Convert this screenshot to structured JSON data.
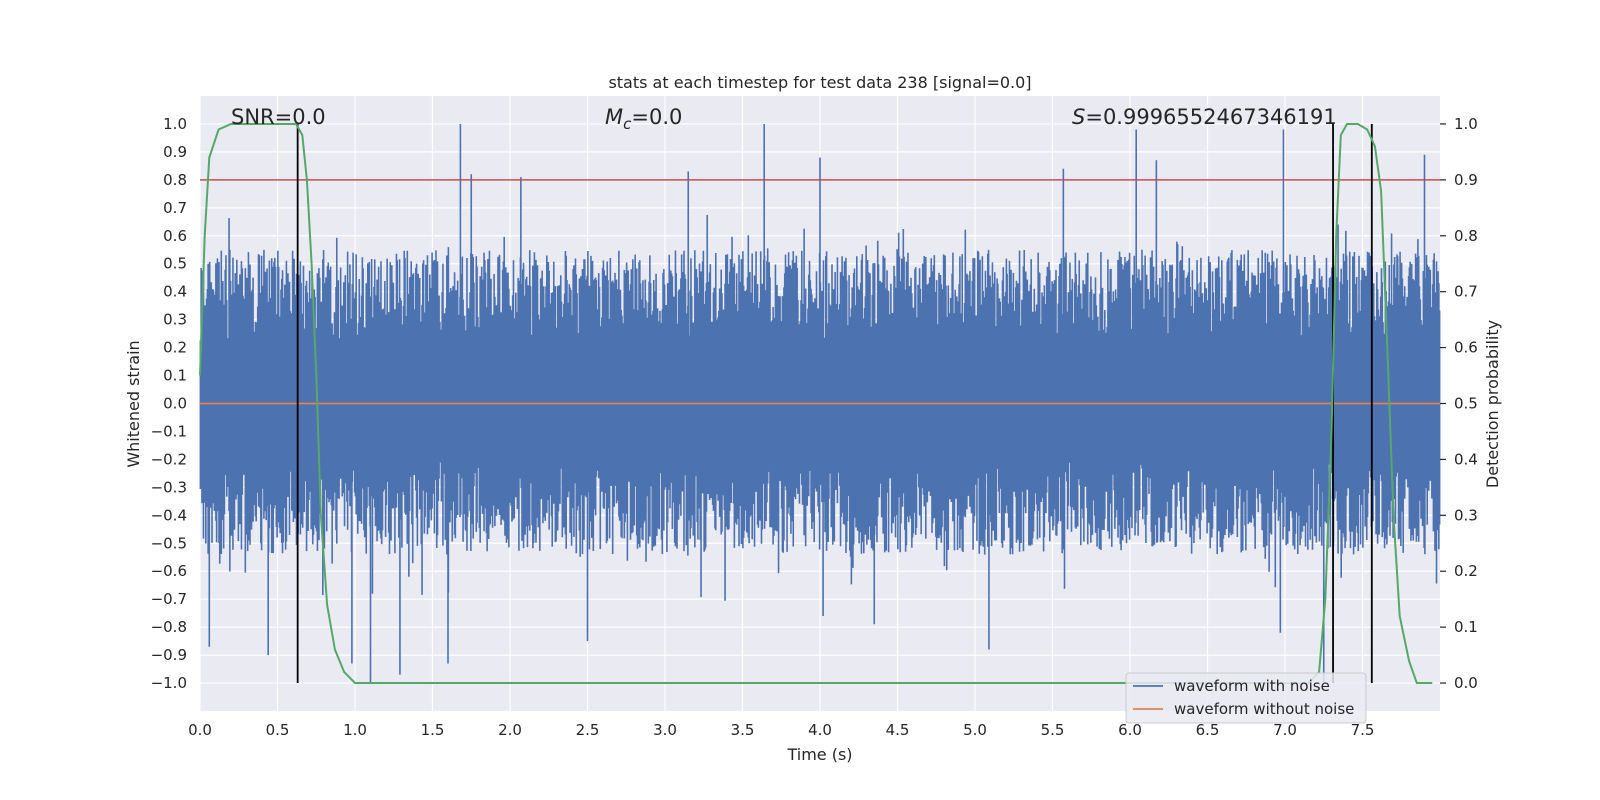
{
  "chart_data": {
    "type": "line",
    "title": "stats at each timestep for test data 238 [signal=0.0]",
    "xlabel": "Time (s)",
    "ylabel": "Whitened strain",
    "y2label": "Detection probability",
    "xlim": [
      0.0,
      8.0
    ],
    "ylim": [
      -1.1,
      1.1
    ],
    "y2lim": [
      -0.05,
      1.05
    ],
    "xticks": [
      0.0,
      0.5,
      1.0,
      1.5,
      2.0,
      2.5,
      3.0,
      3.5,
      4.0,
      4.5,
      5.0,
      5.5,
      6.0,
      6.5,
      7.0,
      7.5
    ],
    "xtick_labels": [
      "0.0",
      "0.5",
      "1.0",
      "1.5",
      "2.0",
      "2.5",
      "3.0",
      "3.5",
      "4.0",
      "4.5",
      "5.0",
      "5.5",
      "6.0",
      "6.5",
      "7.0",
      "7.5"
    ],
    "yticks": [
      1.0,
      0.9,
      0.8,
      0.7,
      0.6,
      0.5,
      0.4,
      0.3,
      0.2,
      0.1,
      0.0,
      -0.1,
      -0.2,
      -0.3,
      -0.4,
      -0.5,
      -0.6,
      -0.7,
      -0.8,
      -0.9,
      -1.0
    ],
    "ytick_labels": [
      "1.0",
      "0.9",
      "0.8",
      "0.7",
      "0.6",
      "0.5",
      "0.4",
      "0.3",
      "0.2",
      "0.1",
      "0.0",
      "−0.1",
      "−0.2",
      "−0.3",
      "−0.4",
      "−0.5",
      "−0.6",
      "−0.7",
      "−0.8",
      "−0.9",
      "−1.0"
    ],
    "y2ticks": [
      1.0,
      0.9,
      0.8,
      0.7,
      0.6,
      0.5,
      0.4,
      0.3,
      0.2,
      0.1,
      0.0
    ],
    "y2tick_labels": [
      "1.0",
      "0.9",
      "0.8",
      "0.7",
      "0.6",
      "0.5",
      "0.4",
      "0.3",
      "0.2",
      "0.1",
      "0.0"
    ],
    "annotations": {
      "snr": "SNR=0.0",
      "mc_symbol": "M",
      "mc_sub": "c",
      "mc_value": "=0.0",
      "s_symbol": "S",
      "s_value": "=0.9996552467346191"
    },
    "series": [
      {
        "name": "waveform with noise",
        "axis": "left",
        "color": "#4c72b0",
        "kind": "noise",
        "samples": 1600,
        "typical_envelope": [
          -0.45,
          0.5
        ],
        "spikes_top": [
          [
            1.68,
            1.0
          ],
          [
            3.64,
            1.0
          ],
          [
            6.04,
            0.98
          ],
          [
            6.99,
            0.98
          ],
          [
            7.9,
            0.89
          ],
          [
            4.0,
            0.88
          ],
          [
            3.15,
            0.83
          ],
          [
            1.75,
            0.82
          ],
          [
            2.07,
            0.81
          ],
          [
            5.57,
            0.84
          ],
          [
            6.17,
            0.87
          ]
        ],
        "spikes_bottom": [
          [
            0.06,
            -0.87
          ],
          [
            0.44,
            -0.9
          ],
          [
            0.98,
            -0.93
          ],
          [
            1.1,
            -1.0
          ],
          [
            1.29,
            -0.97
          ],
          [
            1.6,
            -0.93
          ],
          [
            2.5,
            -0.85
          ],
          [
            4.02,
            -0.76
          ],
          [
            4.35,
            -0.79
          ],
          [
            5.09,
            -0.88
          ],
          [
            7.25,
            -1.0
          ],
          [
            6.97,
            -0.82
          ]
        ]
      },
      {
        "name": "waveform without noise",
        "axis": "left",
        "color": "#dd8452",
        "x": [
          0.0,
          8.0
        ],
        "y": [
          0.0,
          0.0
        ]
      },
      {
        "name": "detection probability",
        "axis": "right",
        "color": "#55a868",
        "x": [
          0.0,
          0.03,
          0.06,
          0.12,
          0.2,
          0.3,
          0.4,
          0.5,
          0.57,
          0.62,
          0.66,
          0.69,
          0.72,
          0.75,
          0.78,
          0.82,
          0.87,
          0.93,
          1.0,
          1.1,
          1.5,
          2.0,
          3.0,
          4.0,
          5.0,
          6.0,
          7.0,
          7.15,
          7.22,
          7.26,
          7.3,
          7.33,
          7.36,
          7.4,
          7.47,
          7.53,
          7.58,
          7.62,
          7.66,
          7.7,
          7.74,
          7.8,
          7.85,
          7.9,
          7.95
        ],
        "y": [
          0.55,
          0.8,
          0.94,
          0.99,
          1.0,
          1.0,
          1.0,
          1.0,
          1.0,
          1.0,
          0.98,
          0.9,
          0.75,
          0.55,
          0.3,
          0.14,
          0.06,
          0.02,
          0.0,
          0.0,
          0.0,
          0.0,
          0.0,
          0.0,
          0.0,
          0.0,
          0.0,
          0.0,
          0.02,
          0.15,
          0.45,
          0.8,
          0.98,
          1.0,
          1.0,
          0.99,
          0.96,
          0.88,
          0.6,
          0.3,
          0.12,
          0.04,
          0.0,
          0.0,
          0.0
        ]
      }
    ],
    "threshold": {
      "name": "threshold",
      "axis": "right",
      "value": 0.9,
      "color": "#c44e52"
    },
    "vlines": [
      0.63,
      7.31,
      7.56
    ],
    "vline_color": "#000000",
    "legend": {
      "location": "lower-right",
      "entries": [
        {
          "label": "waveform with noise",
          "color": "#4c72b0"
        },
        {
          "label": "waveform without noise",
          "color": "#dd8452"
        }
      ]
    },
    "style": {
      "plot_bg": "#eaeaf2",
      "grid": true,
      "grid_color": "#ffffff"
    }
  }
}
